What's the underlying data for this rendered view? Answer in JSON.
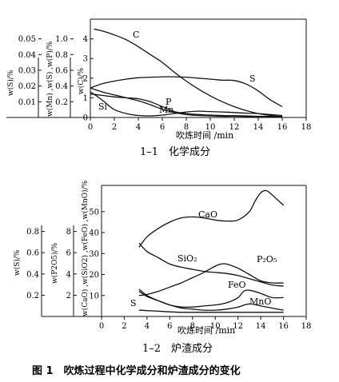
{
  "figure_caption": "图 1　吹炼过程中化学成分和炉渣成分的变化",
  "chart_data": [
    {
      "type": "line",
      "title": "1–1　化学成分",
      "xlabel": "吹炼时间 /min",
      "xlim": [
        0,
        18
      ],
      "x_ticks": [
        "0",
        "2",
        "4",
        "6",
        "8",
        "10",
        "12",
        "14",
        "16",
        "18"
      ],
      "grid": false,
      "y_axes": [
        {
          "label": "w(C)/%",
          "ylim": [
            0,
            5
          ],
          "ticks": [
            "0",
            "1",
            "2",
            "3",
            "4"
          ]
        },
        {
          "label": "w(Mn) ,w(S) ,w(P)/%",
          "ylim": [
            0,
            1.25
          ],
          "ticks": [
            "0.2",
            "0.4",
            "0.6",
            "0.8",
            "1.0"
          ]
        },
        {
          "label": "w(S)/%",
          "ylim": [
            0,
            0.0625
          ],
          "ticks": [
            "0.01",
            "0.02",
            "0.03",
            "0.04",
            "0.05"
          ]
        }
      ],
      "series": [
        {
          "name": "C",
          "x": [
            0.3,
            1,
            2,
            3,
            4,
            5,
            6,
            7,
            8,
            9,
            10,
            11,
            12,
            13,
            14,
            15,
            16
          ],
          "y": [
            4.5,
            4.4,
            4.2,
            3.95,
            3.6,
            3.2,
            2.8,
            2.3,
            1.85,
            1.45,
            1.1,
            0.8,
            0.55,
            0.35,
            0.2,
            0.1,
            0.05
          ]
        },
        {
          "name": "S",
          "x": [
            0,
            1,
            2,
            3,
            4,
            5,
            6,
            7,
            8,
            9,
            10,
            11,
            12,
            13,
            14,
            15,
            16
          ],
          "y": [
            1.5,
            1.72,
            1.85,
            1.95,
            2.02,
            2.05,
            2.07,
            2.07,
            2.05,
            2.0,
            1.95,
            1.9,
            1.88,
            1.7,
            1.35,
            0.9,
            0.55
          ]
        },
        {
          "name": "Si",
          "x": [
            0,
            0.5,
            1,
            1.5,
            2,
            3,
            4,
            5,
            6,
            7,
            8,
            9,
            10,
            11,
            12,
            13,
            14,
            15,
            16
          ],
          "y": [
            1.3,
            1.1,
            0.88,
            0.62,
            0.4,
            0.2,
            0.1,
            0.08,
            0.12,
            0.2,
            0.28,
            0.32,
            0.3,
            0.28,
            0.25,
            0.22,
            0.2,
            0.15,
            0.1
          ]
        },
        {
          "name": "Mn",
          "x": [
            0,
            1,
            2,
            3,
            4,
            5,
            6,
            7,
            8,
            9,
            10,
            11,
            12,
            13,
            14,
            15,
            16
          ],
          "y": [
            1.5,
            1.3,
            1.15,
            1.0,
            0.85,
            0.65,
            0.42,
            0.25,
            0.15,
            0.1,
            0.08,
            0.06,
            0.06,
            0.05,
            0.05,
            0.05,
            0.05
          ]
        },
        {
          "name": "P",
          "x": [
            0,
            1,
            2,
            3,
            4,
            5,
            6,
            7,
            8,
            9,
            10,
            11,
            12,
            13,
            14,
            15,
            16
          ],
          "y": [
            1.2,
            1.12,
            1.05,
            1.0,
            0.95,
            0.8,
            0.55,
            0.3,
            0.2,
            0.15,
            0.12,
            0.1,
            0.09,
            0.08,
            0.06,
            0.05,
            0.05
          ]
        }
      ],
      "annotations": [
        "C",
        "S",
        "P",
        "Si",
        "Mn"
      ]
    },
    {
      "type": "line",
      "title": "1–2　炉渣成分",
      "xlabel": "吹炼时间 /min",
      "xlim": [
        0,
        18
      ],
      "x_ticks": [
        "0",
        "2",
        "4",
        "6",
        "8",
        "10",
        "12",
        "14",
        "16",
        "18"
      ],
      "grid": false,
      "y_axes": [
        {
          "label": "w(CaO) ,w(SiO2) ,w(FeO) ,w(MnO)/%",
          "ylim": [
            0,
            62.5
          ],
          "ticks": [
            "10",
            "20",
            "30",
            "40",
            "50"
          ]
        },
        {
          "label": "w(P2O5)/%",
          "ylim": [
            0,
            10
          ],
          "ticks": [
            "2",
            "4",
            "6",
            "8"
          ]
        },
        {
          "label": "w(S)/%",
          "ylim": [
            0,
            1.0
          ],
          "ticks": [
            "0.2",
            "0.4",
            "0.6",
            "0.8"
          ]
        }
      ],
      "series": [
        {
          "name": "CaO",
          "x": [
            3.3,
            4,
            5,
            6,
            7,
            8,
            9,
            10,
            11,
            12,
            13,
            13.5,
            14,
            14.5,
            15,
            16
          ],
          "y": [
            33,
            38,
            42,
            45,
            47,
            47.5,
            47,
            46,
            45.5,
            46,
            50,
            55,
            59,
            60,
            58,
            53
          ]
        },
        {
          "name": "SiO2",
          "x": [
            3.3,
            4,
            5,
            6,
            7,
            8,
            9,
            10,
            11,
            12,
            13,
            14,
            15,
            16
          ],
          "y": [
            35,
            31,
            28,
            25,
            23.5,
            22.5,
            21.5,
            21,
            20.5,
            19.5,
            18,
            16.5,
            15,
            14.5
          ]
        },
        {
          "name": "P2O5",
          "x": [
            3.3,
            4,
            5,
            6,
            7,
            8,
            9,
            10,
            10.5,
            11,
            12,
            13,
            14,
            15,
            16
          ],
          "y": [
            10,
            10.5,
            12,
            14,
            16,
            18.5,
            21,
            24,
            25,
            25,
            23,
            20,
            17,
            16,
            16
          ]
        },
        {
          "name": "FeO",
          "x": [
            3.3,
            4,
            5,
            6,
            7,
            8,
            9,
            10,
            11,
            12,
            12.5,
            13,
            14,
            15,
            16
          ],
          "y": [
            13,
            10,
            7.5,
            5.5,
            4.5,
            4.5,
            5,
            5.5,
            6.5,
            9,
            12,
            12.5,
            11,
            9,
            9
          ]
        },
        {
          "name": "MnO",
          "x": [
            3.3,
            4,
            5,
            6,
            7,
            8,
            9,
            10,
            11,
            12,
            13,
            14,
            15,
            16
          ],
          "y": [
            12,
            9.5,
            7.5,
            5.5,
            4,
            3.5,
            3,
            3,
            3.5,
            4.5,
            6,
            5,
            4,
            3
          ]
        },
        {
          "name": "S",
          "x": [
            3.3,
            4,
            5,
            6,
            7,
            8,
            9,
            10,
            11,
            12,
            13,
            14,
            15,
            16
          ],
          "y": [
            3,
            2.8,
            2.5,
            2.2,
            2,
            2,
            2,
            2,
            2,
            2,
            2,
            2,
            2,
            2
          ]
        }
      ],
      "annotations": [
        "CaO",
        "SiO₂",
        "P₂O₅",
        "FeO",
        "MnO",
        "S"
      ]
    }
  ]
}
